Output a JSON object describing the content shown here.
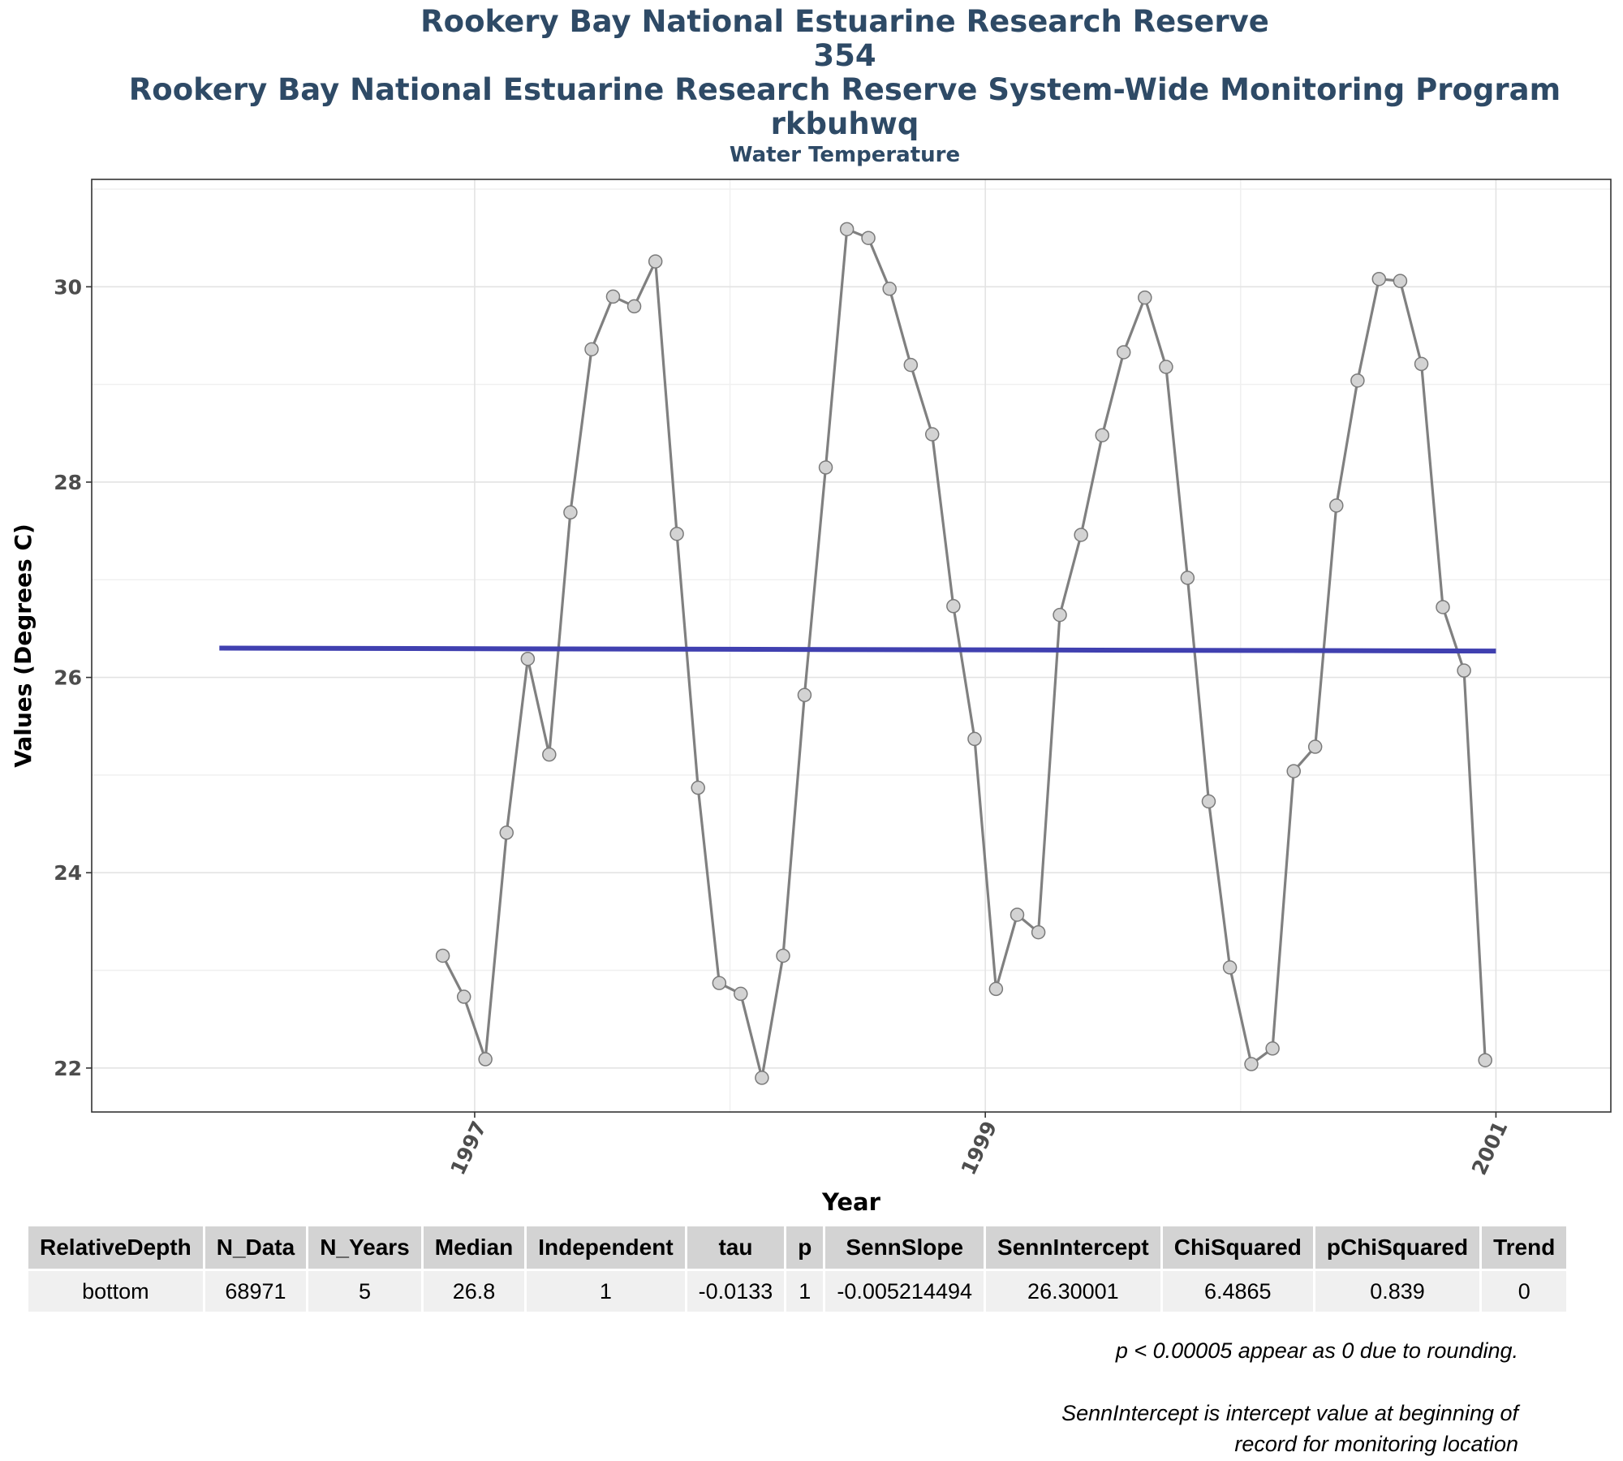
{
  "titles": [
    "Rookery Bay National Estuarine Research Reserve",
    "354",
    "Rookery Bay National Estuarine Research Reserve System-Wide Monitoring Program",
    "rkbuhwq"
  ],
  "subtitle": "Water Temperature",
  "chart_data": {
    "type": "line",
    "title": "Rookery Bay National Estuarine Research Reserve",
    "subtitle": "Water Temperature",
    "xlabel": "Year",
    "ylabel": "Values (Degrees C)",
    "xlim": [
      1995.5,
      2001.45
    ],
    "ylim": [
      21.55,
      31.1
    ],
    "xticks": [
      1997,
      1999,
      2001
    ],
    "yticks": [
      22,
      24,
      26,
      28,
      30
    ],
    "grid": true,
    "series": [
      {
        "color": "#808080",
        "points": [
          [
            1996.875,
            23.15
          ],
          [
            1996.958,
            22.73
          ],
          [
            1997.042,
            22.09
          ],
          [
            1997.125,
            24.41
          ],
          [
            1997.208,
            26.19
          ],
          [
            1997.292,
            25.21
          ],
          [
            1997.375,
            27.69
          ],
          [
            1997.458,
            29.36
          ],
          [
            1997.542,
            29.9
          ],
          [
            1997.625,
            29.8
          ],
          [
            1997.708,
            30.26
          ],
          [
            1997.792,
            27.47
          ],
          [
            1997.875,
            24.87
          ],
          [
            1997.958,
            22.87
          ],
          [
            1998.042,
            22.76
          ],
          [
            1998.125,
            21.9
          ],
          [
            1998.208,
            23.15
          ],
          [
            1998.292,
            25.82
          ],
          [
            1998.375,
            28.15
          ],
          [
            1998.458,
            30.59
          ],
          [
            1998.542,
            30.5
          ],
          [
            1998.625,
            29.98
          ],
          [
            1998.708,
            29.2
          ],
          [
            1998.792,
            28.49
          ],
          [
            1998.875,
            26.73
          ],
          [
            1998.958,
            25.37
          ],
          [
            1999.042,
            22.81
          ],
          [
            1999.125,
            23.57
          ],
          [
            1999.208,
            23.39
          ],
          [
            1999.292,
            26.64
          ],
          [
            1999.375,
            27.46
          ],
          [
            1999.458,
            28.48
          ],
          [
            1999.542,
            29.33
          ],
          [
            1999.625,
            29.89
          ],
          [
            1999.708,
            29.18
          ],
          [
            1999.792,
            27.02
          ],
          [
            1999.875,
            24.73
          ],
          [
            1999.958,
            23.03
          ],
          [
            2000.042,
            22.04
          ],
          [
            2000.125,
            22.2
          ],
          [
            2000.208,
            25.04
          ],
          [
            2000.292,
            25.29
          ],
          [
            2000.375,
            27.76
          ],
          [
            2000.458,
            29.04
          ],
          [
            2000.542,
            30.08
          ],
          [
            2000.625,
            30.06
          ],
          [
            2000.708,
            29.21
          ],
          [
            2000.792,
            26.72
          ],
          [
            2000.875,
            26.07
          ],
          [
            2000.958,
            22.08
          ]
        ]
      },
      {
        "color": "#4040b0",
        "points": [
          [
            1996.0,
            26.3
          ],
          [
            2001.0,
            26.27
          ]
        ]
      }
    ]
  },
  "table": {
    "headers": [
      "RelativeDepth",
      "N_Data",
      "N_Years",
      "Median",
      "Independent",
      "tau",
      "p",
      "SennSlope",
      "SennIntercept",
      "ChiSquared",
      "pChiSquared",
      "Trend"
    ],
    "rows": [
      [
        "bottom",
        "68971",
        "5",
        "26.8",
        "1",
        "-0.0133",
        "1",
        "-0.005214494",
        "26.30001",
        "6.4865",
        "0.839",
        "0"
      ]
    ]
  },
  "notes": {
    "rounding": "p < 0.00005 appear as 0 due to rounding.",
    "intercept_line1": "SennIntercept is intercept value at beginning of",
    "intercept_line2": "record for monitoring location"
  }
}
